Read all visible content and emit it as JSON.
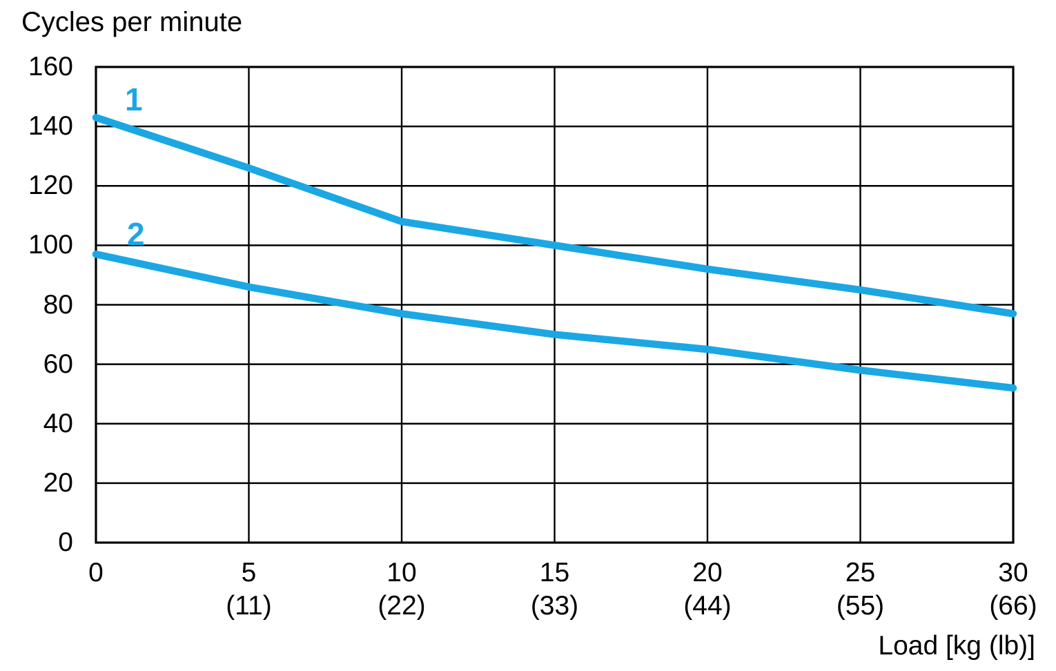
{
  "chart_data": {
    "type": "line",
    "title": "Cycles per minute",
    "xlabel": "Load [kg (lb)]",
    "ylabel": "Cycles per minute",
    "x_kg": [
      0,
      5,
      10,
      15,
      20,
      25,
      30
    ],
    "x_lb_labels": [
      "",
      "(11)",
      "(22)",
      "(33)",
      "(44)",
      "(55)",
      "(66)"
    ],
    "xlim": [
      0,
      30
    ],
    "ylim": [
      0,
      160
    ],
    "yticks": [
      0,
      20,
      40,
      60,
      80,
      100,
      120,
      140,
      160
    ],
    "grid": true,
    "legend_position": "inline-labels-top-left",
    "line_color": "#1BA7E4",
    "grid_color": "#000000",
    "text_color": "#000000",
    "series": [
      {
        "name": "1",
        "values": [
          143,
          126,
          108,
          100,
          92,
          85,
          77
        ]
      },
      {
        "name": "2",
        "values": [
          97,
          86,
          77,
          70,
          65,
          58,
          52
        ]
      }
    ]
  }
}
